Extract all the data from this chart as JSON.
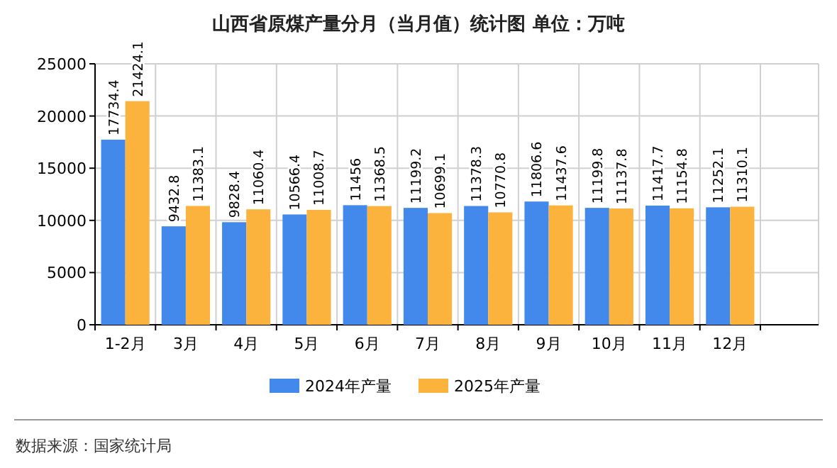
{
  "chart_data": {
    "type": "bar",
    "title": "山西省原煤产量分月（当月值）统计图 单位：万吨",
    "categories": [
      "1-2月",
      "3月",
      "4月",
      "5月",
      "6月",
      "7月",
      "8月",
      "9月",
      "10月",
      "11月",
      "12月"
    ],
    "series": [
      {
        "name": "2024年产量",
        "color": "#4389eb",
        "values": [
          17734.4,
          9432.8,
          9828.4,
          10566.4,
          11456,
          11199.2,
          11378.3,
          11806.6,
          11199.8,
          11417.7,
          11252.1
        ]
      },
      {
        "name": "2025年产量",
        "color": "#fbb33e",
        "values": [
          21424.1,
          11383.1,
          11060.4,
          11008.7,
          11368.5,
          10699.1,
          10770.8,
          11437.6,
          11137.8,
          11154.8,
          11310.1
        ]
      }
    ],
    "ylim": [
      0,
      25000
    ],
    "yticks": [
      0,
      5000,
      10000,
      15000,
      20000,
      25000
    ],
    "grid": true,
    "legend": "bottom",
    "data_labels": true,
    "annotations": [
      "数据来源：国家统计局"
    ]
  }
}
